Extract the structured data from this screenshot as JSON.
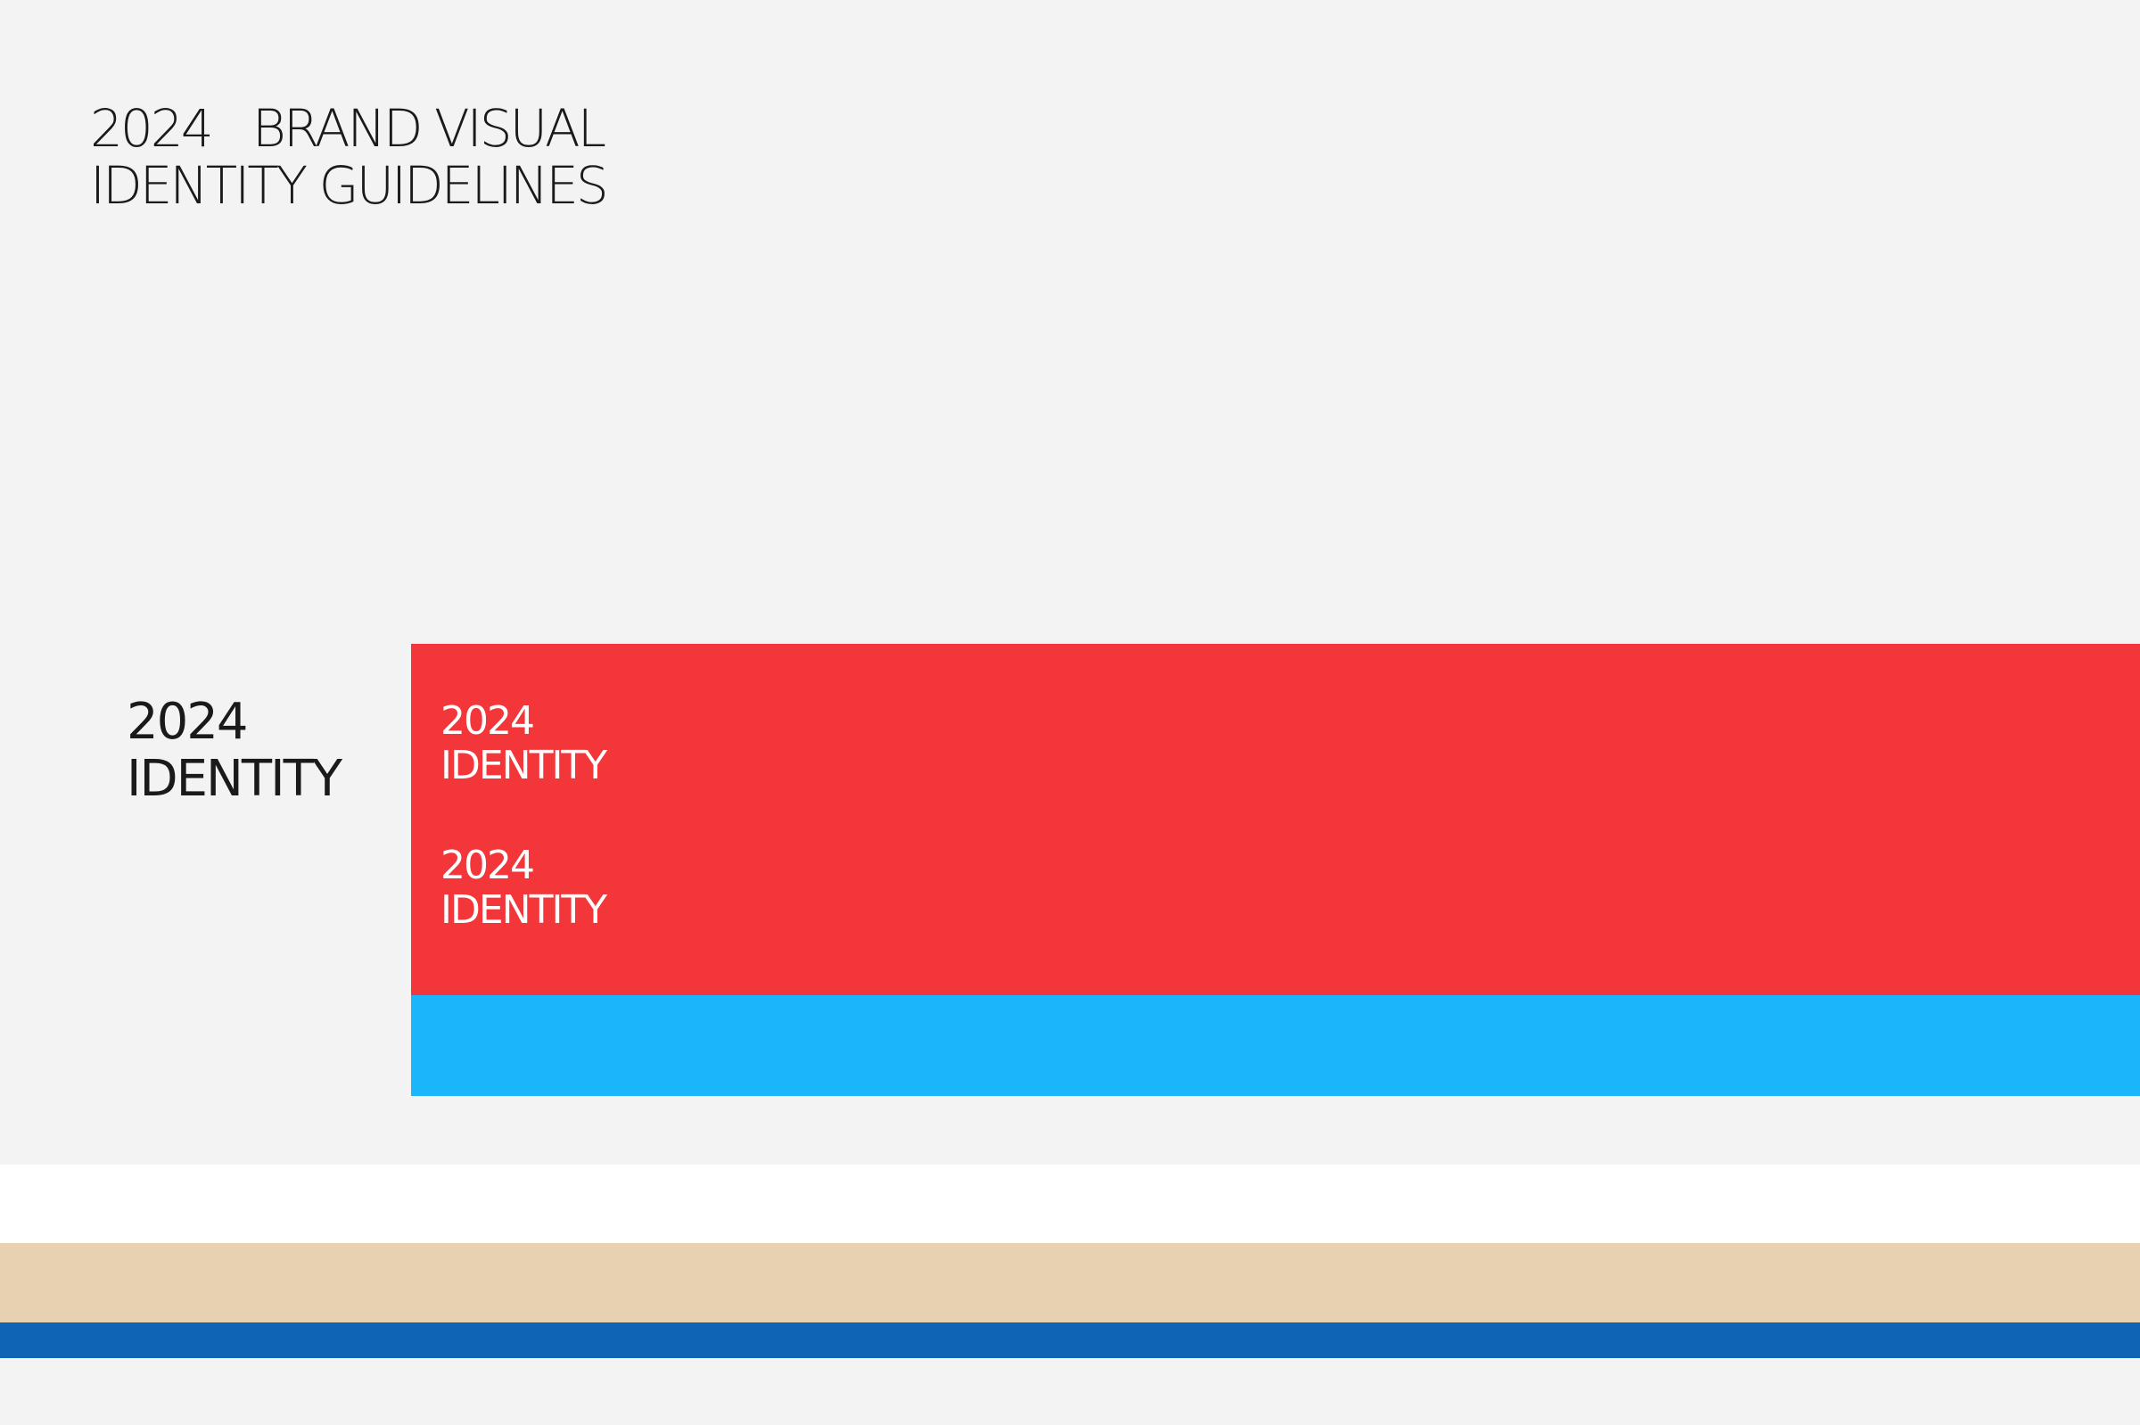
{
  "header": {
    "title_lines": [
      "2024   BRAND VISUAL",
      "IDENTITY GUIDELINES"
    ]
  },
  "side_block": {
    "lines": [
      "2024",
      "IDENTITY"
    ]
  },
  "red_panel": {
    "blocks": [
      {
        "lines": [
          "2024",
          "IDENTITY"
        ]
      },
      {
        "lines": [
          "2024",
          "IDENTITY"
        ]
      }
    ]
  }
}
